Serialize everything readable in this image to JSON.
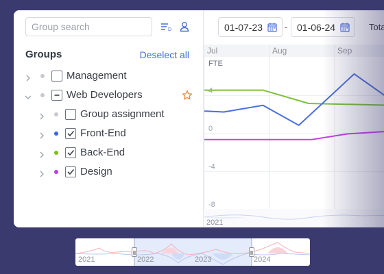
{
  "search": {
    "placeholder": "Group search"
  },
  "groups": {
    "title": "Groups",
    "deselect_label": "Deselect all"
  },
  "tree": [
    {
      "label": "Management",
      "expanded": false,
      "checked": "unchecked",
      "dot_color": "#c7c9cf",
      "level": 0
    },
    {
      "label": "Web Developers",
      "expanded": true,
      "checked": "indeterminate",
      "dot_color": "#c7c9cf",
      "level": 0,
      "favorite": true
    },
    {
      "label": "Group assignment",
      "expanded": false,
      "checked": "unchecked",
      "dot_color": "#c7c9cf",
      "level": 1
    },
    {
      "label": "Front-End",
      "expanded": false,
      "checked": "checked",
      "dot_color": "#3b66e0",
      "level": 1
    },
    {
      "label": "Back-End",
      "expanded": false,
      "checked": "checked",
      "dot_color": "#7cc10d",
      "level": 1
    },
    {
      "label": "Design",
      "expanded": false,
      "checked": "checked",
      "dot_color": "#c23be8",
      "level": 1
    }
  ],
  "date_range": {
    "start": "01-07-23",
    "separator": "-",
    "end": "01-06-24",
    "total_label": "Tota"
  },
  "chart_data": {
    "type": "line",
    "ylabel": "FTE",
    "x": [
      "Jul",
      "Aug",
      "Sep"
    ],
    "yticks": [
      "4",
      "0",
      "-4",
      "-8"
    ],
    "ylim": [
      -8.5,
      7.5
    ],
    "series": [
      {
        "color": "#7cc13a",
        "values": [
          [
            0,
            4
          ],
          [
            0.9,
            4
          ],
          [
            1.6,
            2.6
          ],
          [
            2.9,
            2.4
          ]
        ]
      },
      {
        "color": "#4a6ee0",
        "values": [
          [
            0,
            1.8
          ],
          [
            0.3,
            1.7
          ],
          [
            0.9,
            2.4
          ],
          [
            1.45,
            0.3
          ],
          [
            2.3,
            5.7
          ],
          [
            2.9,
            2.8
          ]
        ]
      },
      {
        "color": "#c443e8",
        "values": [
          [
            0,
            -1.2
          ],
          [
            1.65,
            -1.2
          ],
          [
            2.2,
            -0.6
          ],
          [
            2.9,
            -0.3
          ]
        ]
      }
    ],
    "overview_year": "2021"
  },
  "timeline": {
    "years": [
      "2021",
      "2022",
      "2023",
      "2024"
    ]
  },
  "colors": {
    "background": "#3b3a6e",
    "accent": "#3f70d8",
    "star": "#f08a2a"
  }
}
